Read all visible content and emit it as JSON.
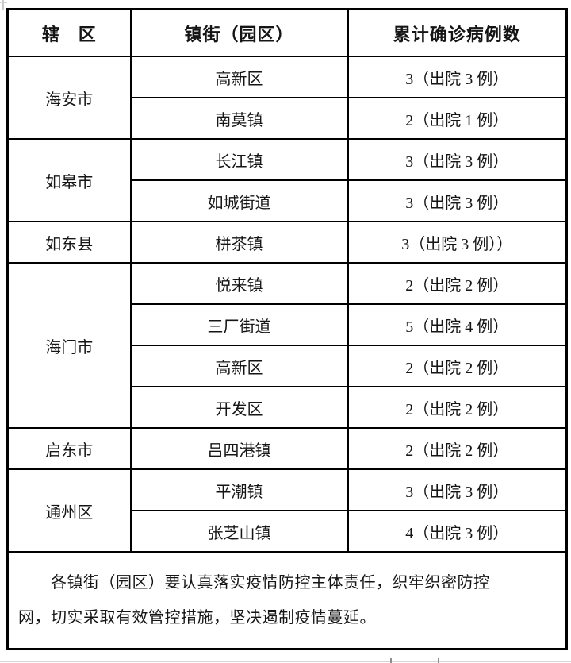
{
  "table": {
    "headers": {
      "region": "辖　区",
      "town": "镇街（园区）",
      "cases": "累计确诊病例数"
    },
    "rows": [
      {
        "region": "海安市",
        "town": "高新区",
        "cases": "3（出院 3 例）"
      },
      {
        "town": "南莫镇",
        "cases": "2（出院 1 例）"
      },
      {
        "region": "如皋市",
        "town": "长江镇",
        "cases": "3（出院 3 例）"
      },
      {
        "town": "如城街道",
        "cases": "3（出院 3 例）"
      },
      {
        "region": "如东县",
        "town": "栟茶镇",
        "cases": "3（出院 3 例））"
      },
      {
        "region": "海门市",
        "town": "悦来镇",
        "cases": "2（出院 2 例）"
      },
      {
        "town": "三厂街道",
        "cases": "5（出院 4 例）"
      },
      {
        "town": "高新区",
        "cases": "2（出院 2 例）"
      },
      {
        "town": "开发区",
        "cases": "2（出院 2 例）"
      },
      {
        "region": "启东市",
        "town": "吕四港镇",
        "cases": "2（出院 2 例）"
      },
      {
        "region": "通州区",
        "town": "平潮镇",
        "cases": "3（出院 3 例）"
      },
      {
        "town": "张芝山镇",
        "cases": "4（出院 3 例）"
      }
    ],
    "note": "　　各镇街（园区）要认真落实疫情防控主体责任，织牢织密防控\n网，切实采取有效管控措施，坚决遏制疫情蔓延。"
  },
  "colors": {
    "border": "#000000",
    "text": "#151515",
    "background": "#ffffff"
  }
}
